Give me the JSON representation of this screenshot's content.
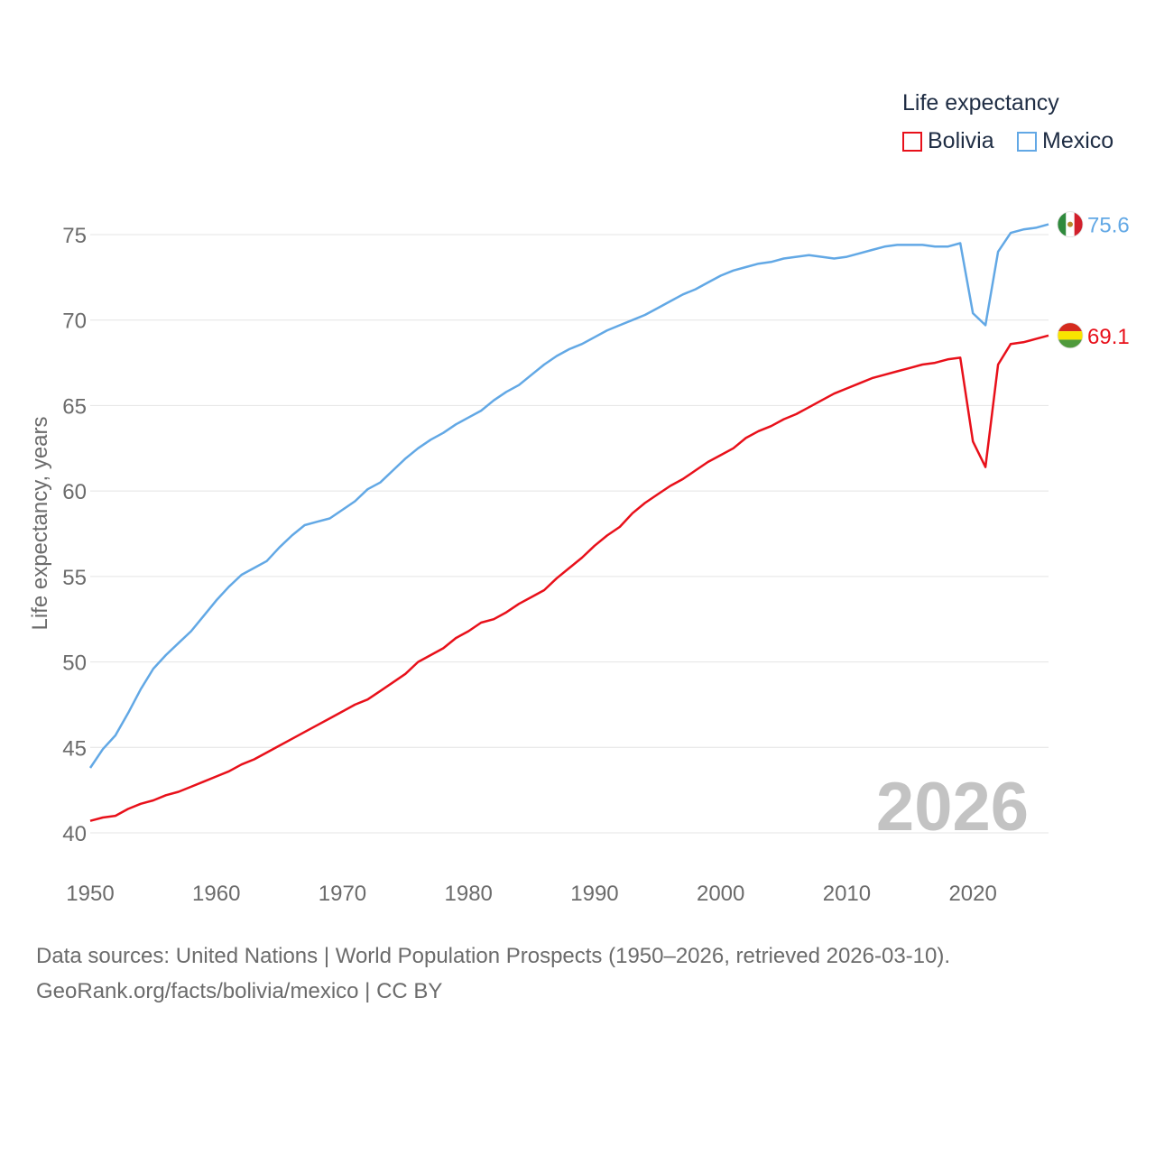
{
  "legend": {
    "title": "Life expectancy",
    "items": [
      {
        "label": "Bolivia",
        "color": "#e8101a"
      },
      {
        "label": "Mexico",
        "color": "#62a8e5"
      }
    ]
  },
  "year_watermark": "2026",
  "source": {
    "line1": "Data sources: United Nations | World Population Prospects (1950–2026, retrieved 2026-03-10).",
    "line2": "GeoRank.org/facts/bolivia/mexico | CC BY"
  },
  "chart_data": {
    "type": "line",
    "title": "Life expectancy",
    "xlabel": "",
    "ylabel": "Life expectancy, years",
    "xlim": [
      1950,
      2026
    ],
    "ylim": [
      40,
      76
    ],
    "yticks": [
      40,
      45,
      50,
      55,
      60,
      65,
      70,
      75
    ],
    "xticks": [
      1950,
      1960,
      1970,
      1980,
      1990,
      2000,
      2010,
      2020
    ],
    "grid": true,
    "x": [
      1950,
      1951,
      1952,
      1953,
      1954,
      1955,
      1956,
      1957,
      1958,
      1959,
      1960,
      1961,
      1962,
      1963,
      1964,
      1965,
      1966,
      1967,
      1968,
      1969,
      1970,
      1971,
      1972,
      1973,
      1974,
      1975,
      1976,
      1977,
      1978,
      1979,
      1980,
      1981,
      1982,
      1983,
      1984,
      1985,
      1986,
      1987,
      1988,
      1989,
      1990,
      1991,
      1992,
      1993,
      1994,
      1995,
      1996,
      1997,
      1998,
      1999,
      2000,
      2001,
      2002,
      2003,
      2004,
      2005,
      2006,
      2007,
      2008,
      2009,
      2010,
      2011,
      2012,
      2013,
      2014,
      2015,
      2016,
      2017,
      2018,
      2019,
      2020,
      2021,
      2022,
      2023,
      2024,
      2025,
      2026
    ],
    "series": [
      {
        "name": "Bolivia",
        "color": "#e8101a",
        "end_label": "69.1",
        "values": [
          40.7,
          40.9,
          41.0,
          41.4,
          41.7,
          41.9,
          42.2,
          42.4,
          42.7,
          43.0,
          43.3,
          43.6,
          44.0,
          44.3,
          44.7,
          45.1,
          45.5,
          45.9,
          46.3,
          46.7,
          47.1,
          47.5,
          47.8,
          48.3,
          48.8,
          49.3,
          50.0,
          50.4,
          50.8,
          51.4,
          51.8,
          52.3,
          52.5,
          52.9,
          53.4,
          53.8,
          54.2,
          54.9,
          55.5,
          56.1,
          56.8,
          57.4,
          57.9,
          58.7,
          59.3,
          59.8,
          60.3,
          60.7,
          61.2,
          61.7,
          62.1,
          62.5,
          63.1,
          63.5,
          63.8,
          64.2,
          64.5,
          64.9,
          65.3,
          65.7,
          66.0,
          66.3,
          66.6,
          66.8,
          67.0,
          67.2,
          67.4,
          67.5,
          67.7,
          67.8,
          62.9,
          61.4,
          67.4,
          68.6,
          68.7,
          68.9,
          69.1
        ]
      },
      {
        "name": "Mexico",
        "color": "#62a8e5",
        "end_label": "75.6",
        "values": [
          43.8,
          44.9,
          45.7,
          47.0,
          48.4,
          49.6,
          50.4,
          51.1,
          51.8,
          52.7,
          53.6,
          54.4,
          55.1,
          55.5,
          55.9,
          56.7,
          57.4,
          58.0,
          58.2,
          58.4,
          58.9,
          59.4,
          60.1,
          60.5,
          61.2,
          61.9,
          62.5,
          63.0,
          63.4,
          63.9,
          64.3,
          64.7,
          65.3,
          65.8,
          66.2,
          66.8,
          67.4,
          67.9,
          68.3,
          68.6,
          69.0,
          69.4,
          69.7,
          70.0,
          70.3,
          70.7,
          71.1,
          71.5,
          71.8,
          72.2,
          72.6,
          72.9,
          73.1,
          73.3,
          73.4,
          73.6,
          73.7,
          73.8,
          73.7,
          73.6,
          73.7,
          73.9,
          74.1,
          74.3,
          74.4,
          74.4,
          74.4,
          74.3,
          74.3,
          74.5,
          70.4,
          69.7,
          74.0,
          75.1,
          75.3,
          75.4,
          75.6
        ]
      }
    ]
  }
}
